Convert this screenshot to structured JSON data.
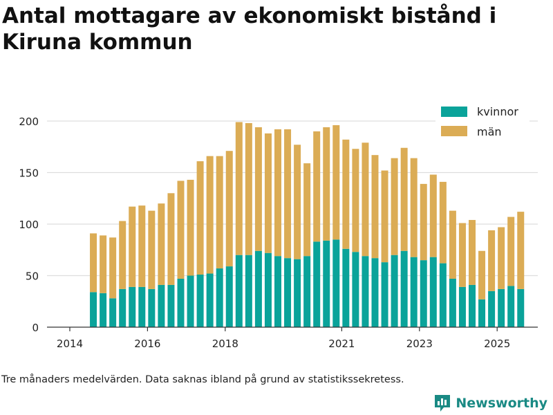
{
  "title": "Antal mottagare av ekonomiskt bistånd i Kiruna kommun",
  "note": "Tre månaders medelvärden. Data saknas ibland på grund av statistikssekretess.",
  "brand": {
    "name": "Newsworthy",
    "color": "#1a8a84"
  },
  "colors": {
    "kvinnor": "#0aa39a",
    "man": "#dbac55",
    "grid": "#dddddd",
    "axis": "#333333"
  },
  "chart_data": {
    "type": "bar",
    "stacked": true,
    "x_tick_labels": [
      "2014",
      "2016",
      "2018",
      "2021",
      "2023",
      "2025"
    ],
    "x_tick_positions": [
      0,
      8,
      16,
      28,
      36,
      44
    ],
    "ylim": [
      0,
      200
    ],
    "y_ticks": [
      0,
      50,
      100,
      150,
      200
    ],
    "grid": true,
    "legend": "top-right",
    "series": [
      {
        "name": "kvinnor",
        "values": [
          34,
          33,
          28,
          37,
          39,
          39,
          37,
          41,
          41,
          47,
          50,
          51,
          52,
          57,
          59,
          70,
          70,
          74,
          72,
          69,
          67,
          66,
          69,
          83,
          84,
          85,
          76,
          73,
          69,
          67,
          63,
          70,
          74,
          68,
          65,
          68,
          62,
          47,
          39,
          41,
          27,
          35,
          37,
          40,
          37
        ]
      },
      {
        "name": "män",
        "values": [
          57,
          56,
          59,
          66,
          78,
          79,
          76,
          79,
          89,
          95,
          93,
          110,
          114,
          109,
          112,
          129,
          128,
          120,
          116,
          123,
          125,
          111,
          90,
          107,
          110,
          111,
          106,
          100,
          110,
          100,
          89,
          94,
          100,
          96,
          74,
          80,
          79,
          66,
          62,
          63,
          47,
          59,
          60,
          67,
          75
        ]
      }
    ],
    "index_start": 1
  }
}
